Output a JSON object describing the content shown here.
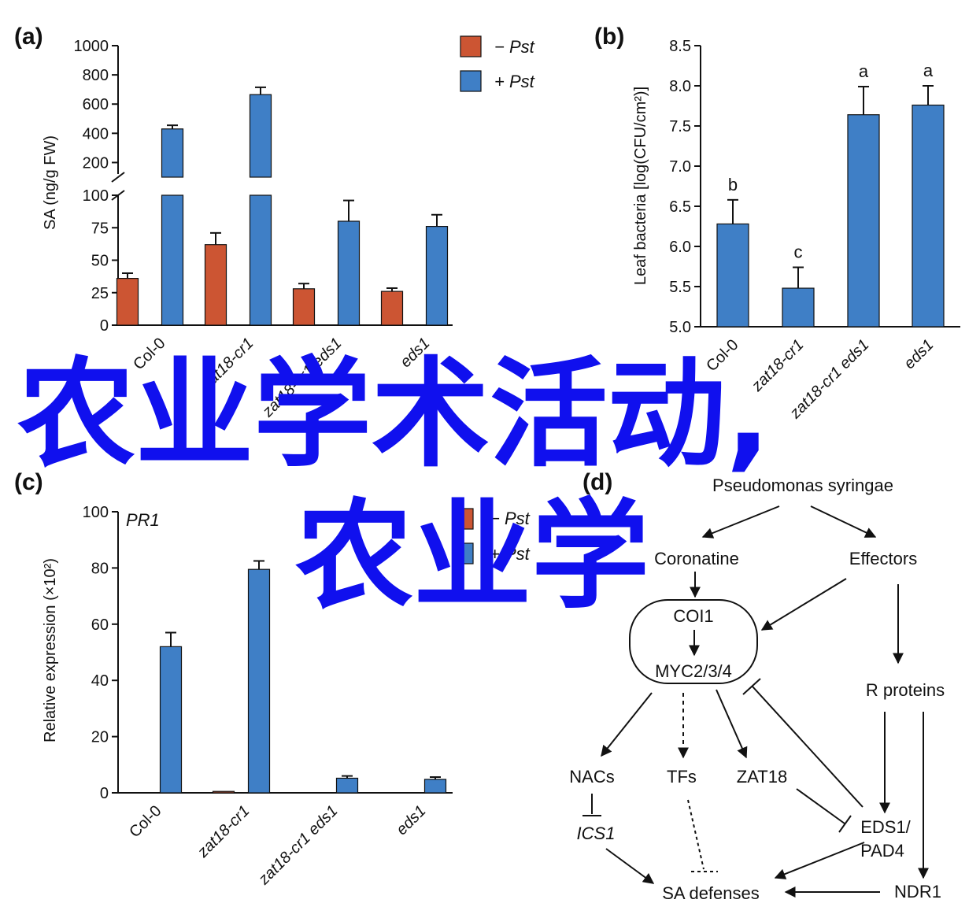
{
  "colors": {
    "minus_pst": "#cc5533",
    "plus_pst": "#3f7fc6",
    "overlay_text": "#1010ee"
  },
  "overlay": {
    "line1": "农业学术活动,",
    "line2": "农业学"
  },
  "chart_data": [
    {
      "panel": "(a)",
      "type": "bar",
      "ylabel": "SA (ng/g FW)",
      "axis_break": true,
      "y_ticks_lower": [
        "0",
        "25",
        "50",
        "75",
        "100"
      ],
      "y_ticks_upper": [
        "200",
        "400",
        "600",
        "800",
        "1000"
      ],
      "ylim_lower": [
        0,
        100
      ],
      "ylim_upper": [
        100,
        1000
      ],
      "categories": [
        "Col-0",
        "zat18-cr1",
        "zat18-cr1 eds1",
        "eds1"
      ],
      "series": [
        {
          "name": "−Pst",
          "values": [
            36,
            62,
            28,
            26
          ],
          "errors": [
            4,
            9,
            4,
            2.5
          ]
        },
        {
          "name": "+Pst",
          "values": [
            430,
            665,
            80,
            76
          ],
          "errors": [
            25,
            50,
            16,
            9
          ]
        }
      ],
      "legend": [
        "− Pst",
        "+ Pst"
      ]
    },
    {
      "panel": "(b)",
      "type": "bar",
      "ylabel": "Leaf bacteria [log(CFU/cm²)]",
      "y_ticks": [
        "5.0",
        "5.5",
        "6.0",
        "6.5",
        "7.0",
        "7.5",
        "8.0",
        "8.5"
      ],
      "ylim": [
        5.0,
        8.5
      ],
      "categories": [
        "Col-0",
        "zat18-cr1",
        "zat18-cr1 eds1",
        "eds1"
      ],
      "values": [
        6.28,
        5.48,
        7.64,
        7.76
      ],
      "errors": [
        0.3,
        0.26,
        0.35,
        0.24
      ],
      "letters": [
        "b",
        "c",
        "a",
        "a"
      ]
    },
    {
      "panel": "(c)",
      "type": "bar",
      "title": "PR1",
      "ylabel": "Relative expression (×10²)",
      "y_ticks": [
        "0",
        "20",
        "40",
        "60",
        "80",
        "100"
      ],
      "ylim": [
        0,
        100
      ],
      "categories": [
        "Col-0",
        "zat18-cr1",
        "zat18-cr1 eds1",
        "eds1"
      ],
      "series": [
        {
          "name": "−Pst",
          "values": [
            0,
            0.5,
            0,
            0
          ],
          "errors": [
            0,
            0.3,
            0,
            0
          ]
        },
        {
          "name": "+Pst",
          "values": [
            52,
            79.5,
            5.2,
            4.8
          ],
          "errors": [
            5,
            3,
            0.8,
            0.8
          ]
        }
      ],
      "legend": [
        "− Pst",
        "+ Pst"
      ]
    }
  ],
  "diagram": {
    "panel": "(d)",
    "nodes": {
      "pseudomonas": "Pseudomonas syringae",
      "coronatine": "Coronatine",
      "effectors": "Effectors",
      "coi1": "COI1",
      "myc": "MYC2/3/4",
      "r_proteins": "R proteins",
      "nacs": "NACs",
      "tfs": "TFs",
      "zat18": "ZAT18",
      "ics1": "ICS1",
      "eds1_pad4_l1": "EDS1/",
      "eds1_pad4_l2": "PAD4",
      "ndr1": "NDR1",
      "sa_defenses": "SA defenses"
    }
  }
}
